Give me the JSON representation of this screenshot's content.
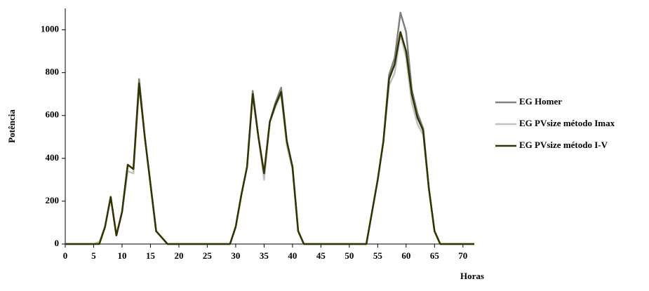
{
  "chart_data": {
    "type": "line",
    "x_label": "Horas",
    "y_label": "Potência",
    "x": [
      0,
      1,
      2,
      3,
      4,
      5,
      6,
      7,
      8,
      9,
      10,
      11,
      12,
      13,
      14,
      15,
      16,
      17,
      18,
      19,
      20,
      21,
      22,
      23,
      24,
      25,
      26,
      27,
      28,
      29,
      30,
      31,
      32,
      33,
      34,
      35,
      36,
      37,
      38,
      39,
      40,
      41,
      42,
      43,
      44,
      45,
      46,
      47,
      48,
      49,
      50,
      51,
      52,
      53,
      54,
      55,
      56,
      57,
      58,
      59,
      60,
      61,
      62,
      63,
      64,
      65,
      66,
      67,
      68,
      69,
      70,
      71,
      72
    ],
    "series": [
      {
        "name": "EG Homer",
        "color": "#808080",
        "values": [
          0,
          0,
          0,
          0,
          0,
          0,
          5,
          80,
          220,
          40,
          150,
          370,
          350,
          770,
          500,
          280,
          60,
          30,
          0,
          0,
          0,
          0,
          0,
          0,
          0,
          0,
          0,
          0,
          0,
          0,
          80,
          230,
          360,
          715,
          500,
          330,
          570,
          660,
          730,
          480,
          360,
          60,
          0,
          0,
          0,
          0,
          0,
          0,
          0,
          0,
          0,
          0,
          0,
          0,
          150,
          300,
          480,
          790,
          870,
          1080,
          990,
          720,
          610,
          540,
          260,
          60,
          0,
          0,
          0,
          0,
          0,
          0,
          0
        ]
      },
      {
        "name": "EG PVsize  método Imax",
        "color": "#c0c0c0",
        "values": [
          0,
          0,
          0,
          0,
          0,
          0,
          10,
          80,
          220,
          40,
          150,
          340,
          330,
          740,
          500,
          280,
          60,
          30,
          0,
          0,
          0,
          0,
          0,
          0,
          0,
          0,
          0,
          0,
          0,
          0,
          80,
          230,
          360,
          700,
          500,
          300,
          570,
          640,
          700,
          460,
          350,
          60,
          0,
          0,
          0,
          0,
          0,
          0,
          0,
          0,
          0,
          0,
          0,
          0,
          150,
          300,
          480,
          740,
          800,
          980,
          870,
          660,
          560,
          510,
          260,
          60,
          0,
          0,
          0,
          0,
          0,
          0,
          0
        ]
      },
      {
        "name": "EG PVsize  método I-V",
        "color": "#333300",
        "values": [
          0,
          0,
          0,
          0,
          0,
          0,
          0,
          80,
          220,
          40,
          150,
          370,
          350,
          750,
          500,
          280,
          60,
          30,
          0,
          0,
          0,
          0,
          0,
          0,
          0,
          0,
          0,
          0,
          0,
          0,
          80,
          230,
          360,
          700,
          500,
          330,
          570,
          650,
          710,
          480,
          360,
          60,
          0,
          0,
          0,
          0,
          0,
          0,
          0,
          0,
          0,
          0,
          0,
          0,
          150,
          300,
          480,
          770,
          840,
          990,
          900,
          700,
          590,
          530,
          260,
          60,
          0,
          0,
          0,
          0,
          0,
          0,
          0
        ]
      }
    ],
    "xlim": [
      0,
      72
    ],
    "xticks": [
      0,
      5,
      10,
      15,
      20,
      25,
      30,
      35,
      40,
      45,
      50,
      55,
      60,
      65,
      70
    ],
    "ylim": [
      0,
      1100
    ],
    "yticks": [
      0,
      200,
      400,
      600,
      800,
      1000
    ],
    "grid": false,
    "legend": "right"
  }
}
